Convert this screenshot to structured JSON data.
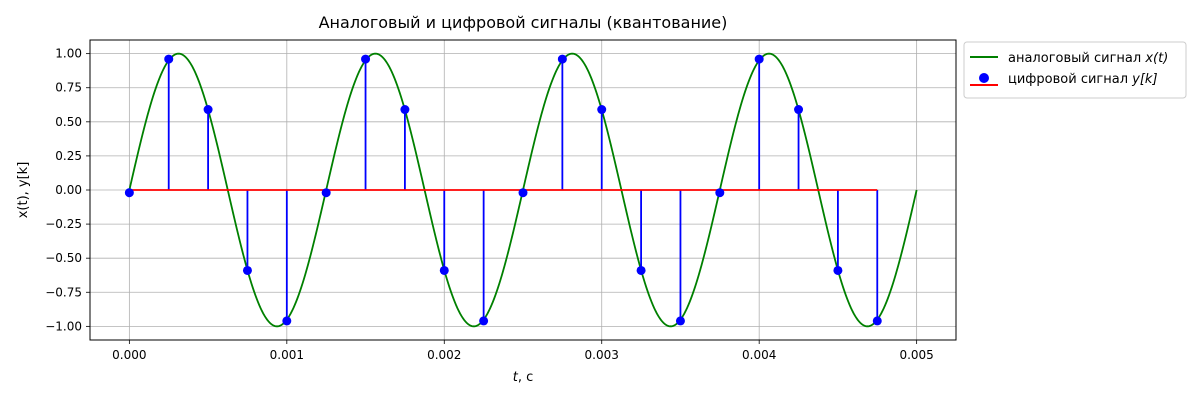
{
  "chart_data": {
    "type": "line",
    "title": "Аналоговый и цифровой сигналы  (квантование)",
    "xlabel_var": "t",
    "xlabel_unit": ", с",
    "ylabel": "x(t), y[k]",
    "xlim": [
      -0.00025,
      0.00525
    ],
    "ylim": [
      -1.1,
      1.1
    ],
    "xticks": [
      0.0,
      0.001,
      0.002,
      0.003,
      0.004,
      0.005
    ],
    "xtick_labels": [
      "0.000",
      "0.001",
      "0.002",
      "0.003",
      "0.004",
      "0.005"
    ],
    "yticks": [
      -1.0,
      -0.75,
      -0.5,
      -0.25,
      0.0,
      0.25,
      0.5,
      0.75,
      1.0
    ],
    "ytick_labels": [
      "−1.00",
      "−0.75",
      "−0.50",
      "−0.25",
      "0.00",
      "0.25",
      "0.50",
      "0.75",
      "1.00"
    ],
    "grid": true,
    "legend_position": "outside-top-right",
    "series": [
      {
        "name": "аналоговый сигнал",
        "name_math": "x(t)",
        "kind": "line",
        "color": "#008000",
        "frequency_hz": 800,
        "t_start": 0.0,
        "t_end": 0.005
      },
      {
        "name": "цифровой сигнал",
        "name_math": "y[k]",
        "kind": "stem",
        "marker_color": "#0000ff",
        "stem_color": "#0000ff",
        "baseline_color": "#ff0000",
        "t": [
          0.0,
          0.00025,
          0.0005,
          0.00075,
          0.001,
          0.00125,
          0.0015,
          0.00175,
          0.002,
          0.00225,
          0.0025,
          0.00275,
          0.003,
          0.00325,
          0.0035,
          0.00375,
          0.004,
          0.00425,
          0.0045,
          0.00475
        ],
        "values": [
          -0.02,
          0.96,
          0.59,
          -0.59,
          -0.96,
          -0.02,
          0.96,
          0.59,
          -0.59,
          -0.96,
          -0.02,
          0.96,
          0.59,
          -0.59,
          -0.96,
          -0.02,
          0.96,
          0.59,
          -0.59,
          -0.96
        ]
      }
    ]
  }
}
